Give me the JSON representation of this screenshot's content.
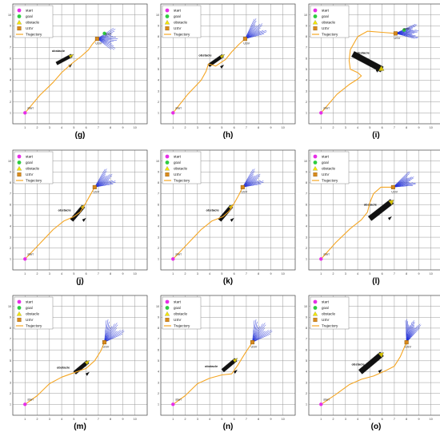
{
  "figure": {
    "colors": {
      "grid": "#9a9a9a",
      "trajectory": "#f5a623",
      "start": "#e62ee6",
      "goal": "#2ecc40",
      "obstacle_fill": "#111111",
      "obstacle_edge": "#d4c000",
      "usv": "#d98a1c",
      "fan": "#1d2bd6"
    },
    "legend": {
      "items": [
        {
          "label": "start",
          "icon": "magenta-circle-icon"
        },
        {
          "label": "goal",
          "icon": "green-circle-icon"
        },
        {
          "label": "obstacle",
          "icon": "yellow-triangle-icon"
        },
        {
          "label": "USV",
          "icon": "orange-square-icon"
        },
        {
          "label": "Trajectory",
          "icon": "orange-line-icon"
        }
      ]
    },
    "annotations": {
      "start": "start",
      "usv": "USV",
      "goal": "goal",
      "obstacle": "obstacle"
    },
    "x_ticks": [
      "1",
      "2",
      "3",
      "4",
      "5",
      "6",
      "7",
      "8",
      "9",
      "10"
    ],
    "y_ticks": [
      "1",
      "2",
      "3",
      "4",
      "5",
      "6",
      "7",
      "8",
      "9",
      "10"
    ],
    "panels": [
      {
        "label": "(g)",
        "start": [
          1,
          1
        ],
        "usv": [
          6.9,
          7.8
        ],
        "goal_label": true,
        "goal": [
          7.5,
          8.3
        ],
        "obstacle": {
          "center": [
            4.2,
            5.9
          ],
          "angle": 28,
          "length": 1.4,
          "width": 0.3
        },
        "obstacle_label_at": [
          3.2,
          6.6
        ],
        "fan": {
          "dir": -2,
          "spread": 70,
          "len": 1.7
        },
        "path": [
          [
            1,
            1
          ],
          [
            2.2,
            2.6
          ],
          [
            3.3,
            3.8
          ],
          [
            4.0,
            4.7
          ],
          [
            4.8,
            5.5
          ],
          [
            5.6,
            6.2
          ],
          [
            6.2,
            6.8
          ],
          [
            6.5,
            7.3
          ],
          [
            6.9,
            7.8
          ]
        ]
      },
      {
        "label": "(h)",
        "start": [
          1,
          1
        ],
        "usv": [
          6.9,
          7.8
        ],
        "goal_label": false,
        "obstacle": {
          "center": [
            4.5,
            5.8
          ],
          "angle": 35,
          "length": 1.4,
          "width": 0.3
        },
        "obstacle_label_at": [
          3.1,
          6.2
        ],
        "fan": {
          "dir": 40,
          "spread": 50,
          "len": 1.9
        },
        "path": [
          [
            1,
            1
          ],
          [
            2.2,
            2.7
          ],
          [
            3.3,
            4.0
          ],
          [
            3.7,
            4.8
          ],
          [
            3.9,
            5.5
          ],
          [
            4.5,
            5.3
          ],
          [
            4.9,
            5.6
          ],
          [
            5.3,
            5.9
          ],
          [
            5.8,
            6.6
          ],
          [
            6.4,
            7.3
          ],
          [
            6.9,
            7.8
          ]
        ]
      },
      {
        "label": "(i)",
        "start": [
          1,
          1
        ],
        "usv": [
          7.1,
          8.3
        ],
        "goal_label": true,
        "goal": [
          7.8,
          8.6
        ],
        "obstacle": {
          "center": [
            4.8,
            5.7
          ],
          "angle": -28,
          "length": 2.7,
          "width": 0.55
        },
        "obstacle_label_at": [
          3.9,
          6.4
        ],
        "fan": {
          "dir": 5,
          "spread": 40,
          "len": 1.9
        },
        "path": [
          [
            1,
            1
          ],
          [
            2.3,
            2.7
          ],
          [
            3.3,
            3.6
          ],
          [
            4.0,
            4.1
          ],
          [
            4.3,
            4.4
          ],
          [
            4.0,
            4.7
          ],
          [
            3.4,
            5.0
          ],
          [
            3.3,
            5.8
          ],
          [
            3.4,
            6.8
          ],
          [
            4.0,
            8.0
          ],
          [
            4.8,
            8.5
          ],
          [
            6.0,
            8.4
          ],
          [
            7.1,
            8.3
          ]
        ]
      },
      {
        "label": "(j)",
        "start": [
          1,
          1
        ],
        "usv": [
          6.7,
          7.6
        ],
        "goal_label": false,
        "obstacle": {
          "center": [
            5.3,
            5.2
          ],
          "angle": 50,
          "length": 1.5,
          "width": 0.35
        },
        "obstacle_label_at": [
          3.7,
          5.4
        ],
        "fan": {
          "dir": 35,
          "spread": 50,
          "len": 1.8
        },
        "path": [
          [
            1,
            1
          ],
          [
            2.2,
            2.4
          ],
          [
            3.3,
            3.7
          ],
          [
            4.2,
            4.5
          ],
          [
            5.0,
            4.9
          ],
          [
            5.5,
            5.3
          ],
          [
            5.9,
            6.0
          ],
          [
            6.3,
            6.8
          ],
          [
            6.7,
            7.6
          ]
        ]
      },
      {
        "label": "(k)",
        "start": [
          1,
          1
        ],
        "usv": [
          6.7,
          7.6
        ],
        "goal_label": false,
        "obstacle": {
          "center": [
            5.3,
            5.2
          ],
          "angle": 50,
          "length": 1.5,
          "width": 0.35
        },
        "obstacle_label_at": [
          3.7,
          5.4
        ],
        "fan": {
          "dir": 35,
          "spread": 50,
          "len": 1.8
        },
        "path": [
          [
            1,
            1
          ],
          [
            2.2,
            2.4
          ],
          [
            3.3,
            3.7
          ],
          [
            4.2,
            4.5
          ],
          [
            5.1,
            4.9
          ],
          [
            5.6,
            5.4
          ],
          [
            6.0,
            6.1
          ],
          [
            6.4,
            6.9
          ],
          [
            6.7,
            7.6
          ]
        ]
      },
      {
        "label": "(l)",
        "start": [
          1,
          1
        ],
        "usv": [
          6.9,
          7.6
        ],
        "goal_label": false,
        "obstacle": {
          "center": [
            5.9,
            5.5
          ],
          "angle": 38,
          "length": 2.3,
          "width": 0.5
        },
        "obstacle_label_at": [
          4.5,
          5.9
        ],
        "fan": {
          "dir": 25,
          "spread": 40,
          "len": 1.9
        },
        "path": [
          [
            1,
            1
          ],
          [
            2.2,
            2.5
          ],
          [
            3.4,
            3.8
          ],
          [
            4.3,
            4.6
          ],
          [
            4.8,
            5.3
          ],
          [
            5.0,
            6.2
          ],
          [
            5.3,
            7.0
          ],
          [
            5.9,
            7.6
          ],
          [
            6.9,
            7.6
          ]
        ]
      },
      {
        "label": "(m)",
        "start": [
          1,
          1
        ],
        "usv": [
          7.5,
          6.7
        ],
        "goal_label": false,
        "obstacle": {
          "center": [
            5.6,
            4.4
          ],
          "angle": 40,
          "length": 1.4,
          "width": 0.35
        },
        "obstacle_label_at": [
          3.6,
          4.3
        ],
        "fan": {
          "dir": 55,
          "spread": 60,
          "len": 1.9
        },
        "path": [
          [
            1,
            1
          ],
          [
            2.0,
            1.8
          ],
          [
            3.0,
            2.9
          ],
          [
            4.0,
            3.5
          ],
          [
            5.0,
            3.9
          ],
          [
            6.0,
            4.3
          ],
          [
            6.7,
            5.0
          ],
          [
            7.2,
            5.9
          ],
          [
            7.5,
            6.7
          ]
        ]
      },
      {
        "label": "(n)",
        "start": [
          1,
          1
        ],
        "usv": [
          7.5,
          6.7
        ],
        "goal_label": false,
        "obstacle": {
          "center": [
            5.6,
            4.6
          ],
          "angle": 40,
          "length": 1.4,
          "width": 0.35
        },
        "obstacle_label_at": [
          3.6,
          4.4
        ],
        "fan": {
          "dir": 55,
          "spread": 60,
          "len": 1.9
        },
        "path": [
          [
            1,
            1
          ],
          [
            2.0,
            1.8
          ],
          [
            3.0,
            2.9
          ],
          [
            4.0,
            3.4
          ],
          [
            5.0,
            3.7
          ],
          [
            5.8,
            3.8
          ],
          [
            6.3,
            4.6
          ],
          [
            6.9,
            5.7
          ],
          [
            7.5,
            6.7
          ]
        ]
      },
      {
        "label": "(o)",
        "start": [
          1,
          1
        ],
        "usv": [
          8.0,
          6.7
        ],
        "goal_label": false,
        "obstacle": {
          "center": [
            5.1,
            4.8
          ],
          "angle": 40,
          "length": 2.3,
          "width": 0.5
        },
        "obstacle_label_at": [
          3.5,
          4.6
        ],
        "fan": {
          "dir": 70,
          "spread": 45,
          "len": 1.9
        },
        "path": [
          [
            1,
            1
          ],
          [
            2.2,
            1.9
          ],
          [
            3.3,
            2.8
          ],
          [
            4.3,
            3.3
          ],
          [
            5.3,
            3.6
          ],
          [
            6.3,
            4.1
          ],
          [
            7.0,
            4.5
          ],
          [
            7.5,
            5.4
          ],
          [
            8.0,
            6.7
          ]
        ]
      }
    ]
  }
}
